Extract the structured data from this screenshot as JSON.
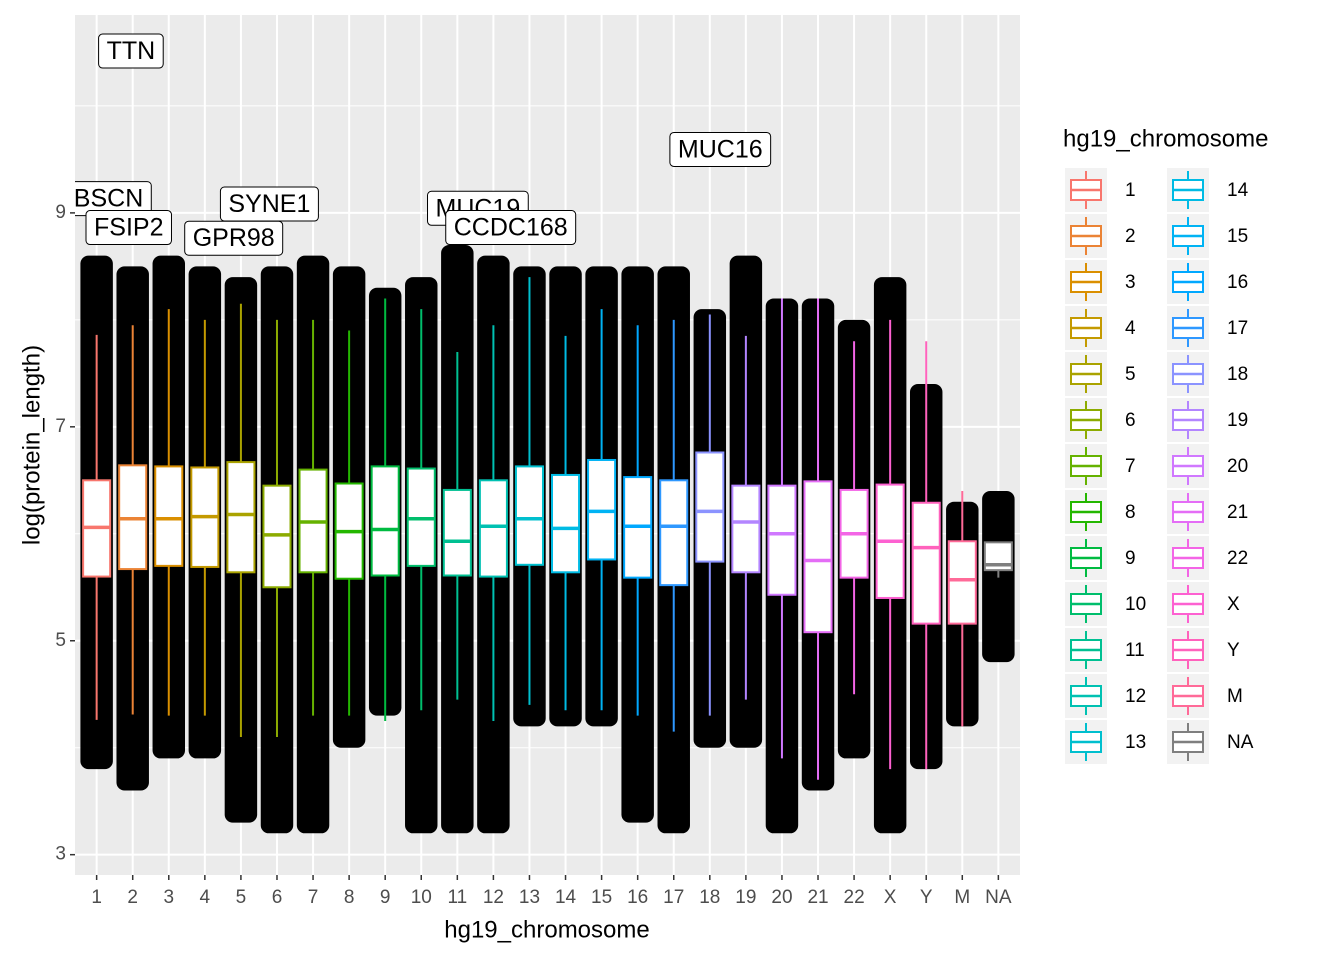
{
  "chart_data": {
    "type": "boxplot",
    "x_label": "hg19_chromosome",
    "y_label": "log(protein_length)",
    "legend_title": "hg19_chromosome",
    "categories": [
      "1",
      "2",
      "3",
      "4",
      "5",
      "6",
      "7",
      "8",
      "9",
      "10",
      "11",
      "12",
      "13",
      "14",
      "15",
      "16",
      "17",
      "18",
      "19",
      "20",
      "21",
      "22",
      "X",
      "Y",
      "M",
      "NA"
    ],
    "colors": [
      "#F8766D",
      "#EB8335",
      "#DA8F00",
      "#C49A00",
      "#AAA300",
      "#8CAB00",
      "#65B200",
      "#24B700",
      "#00BB41",
      "#00BE6C",
      "#00C092",
      "#00C1B2",
      "#00BFCE",
      "#00BBE4",
      "#00B3F4",
      "#00A8FF",
      "#2E98FF",
      "#8B93FF",
      "#B385FF",
      "#D078FF",
      "#E46DF6",
      "#F365E6",
      "#FD61D1",
      "#FF62BC",
      "#FF6A98",
      "#7F7F7F"
    ],
    "boxes": [
      {
        "low": 4.26,
        "q1": 5.6,
        "median": 6.06,
        "q3": 6.5,
        "high": 7.86
      },
      {
        "low": 4.31,
        "q1": 5.67,
        "median": 6.14,
        "q3": 6.64,
        "high": 7.95
      },
      {
        "low": 4.3,
        "q1": 5.7,
        "median": 6.14,
        "q3": 6.63,
        "high": 8.1
      },
      {
        "low": 4.3,
        "q1": 5.69,
        "median": 6.16,
        "q3": 6.62,
        "high": 8.0
      },
      {
        "low": 4.1,
        "q1": 5.64,
        "median": 6.18,
        "q3": 6.67,
        "high": 8.15
      },
      {
        "low": 4.1,
        "q1": 5.5,
        "median": 5.99,
        "q3": 6.45,
        "high": 8.0
      },
      {
        "low": 4.3,
        "q1": 5.64,
        "median": 6.11,
        "q3": 6.6,
        "high": 8.0
      },
      {
        "low": 4.3,
        "q1": 5.58,
        "median": 6.02,
        "q3": 6.47,
        "high": 7.9
      },
      {
        "low": 4.25,
        "q1": 5.61,
        "median": 6.04,
        "q3": 6.63,
        "high": 8.2
      },
      {
        "low": 4.35,
        "q1": 5.7,
        "median": 6.14,
        "q3": 6.61,
        "high": 8.1
      },
      {
        "low": 4.45,
        "q1": 5.61,
        "median": 5.93,
        "q3": 6.41,
        "high": 7.7
      },
      {
        "low": 4.25,
        "q1": 5.6,
        "median": 6.07,
        "q3": 6.5,
        "high": 7.95
      },
      {
        "low": 4.4,
        "q1": 5.71,
        "median": 6.14,
        "q3": 6.63,
        "high": 8.4
      },
      {
        "low": 4.35,
        "q1": 5.64,
        "median": 6.05,
        "q3": 6.55,
        "high": 7.85
      },
      {
        "low": 4.35,
        "q1": 5.76,
        "median": 6.21,
        "q3": 6.69,
        "high": 8.1
      },
      {
        "low": 4.3,
        "q1": 5.59,
        "median": 6.07,
        "q3": 6.53,
        "high": 7.95
      },
      {
        "low": 4.15,
        "q1": 5.52,
        "median": 6.07,
        "q3": 6.5,
        "high": 8.0
      },
      {
        "low": 4.3,
        "q1": 5.74,
        "median": 6.21,
        "q3": 6.76,
        "high": 8.05
      },
      {
        "low": 4.45,
        "q1": 5.64,
        "median": 6.11,
        "q3": 6.45,
        "high": 7.85
      },
      {
        "low": 3.9,
        "q1": 5.43,
        "median": 6.0,
        "q3": 6.45,
        "high": 8.2
      },
      {
        "low": 3.7,
        "q1": 5.08,
        "median": 5.75,
        "q3": 6.49,
        "high": 8.2
      },
      {
        "low": 4.5,
        "q1": 5.59,
        "median": 6.0,
        "q3": 6.41,
        "high": 7.8
      },
      {
        "low": 3.8,
        "q1": 5.4,
        "median": 5.93,
        "q3": 6.46,
        "high": 8.0
      },
      {
        "low": 3.8,
        "q1": 5.16,
        "median": 5.87,
        "q3": 6.29,
        "high": 7.8
      },
      {
        "low": 4.2,
        "q1": 5.16,
        "median": 5.57,
        "q3": 5.93,
        "high": 6.4
      },
      {
        "low": 5.59,
        "q1": 5.66,
        "median": 5.71,
        "q3": 5.92,
        "high": 5.92
      }
    ],
    "jitter_range": [
      [
        3.8,
        8.6
      ],
      [
        3.6,
        8.5
      ],
      [
        3.9,
        8.6
      ],
      [
        3.9,
        8.5
      ],
      [
        3.3,
        8.4
      ],
      [
        3.2,
        8.5
      ],
      [
        3.2,
        8.6
      ],
      [
        4.0,
        8.5
      ],
      [
        4.3,
        8.3
      ],
      [
        3.2,
        8.4
      ],
      [
        3.2,
        8.7
      ],
      [
        3.2,
        8.6
      ],
      [
        4.2,
        8.5
      ],
      [
        4.2,
        8.5
      ],
      [
        4.2,
        8.5
      ],
      [
        3.3,
        8.5
      ],
      [
        3.2,
        8.5
      ],
      [
        4.0,
        8.1
      ],
      [
        4.0,
        8.6
      ],
      [
        3.2,
        8.2
      ],
      [
        3.6,
        8.2
      ],
      [
        3.9,
        8.0
      ],
      [
        3.2,
        8.4
      ],
      [
        3.8,
        7.4
      ],
      [
        4.2,
        6.3
      ],
      [
        4.8,
        6.4
      ]
    ],
    "annotations": [
      {
        "text": "BSCN",
        "x": 1.33,
        "y": 9.12
      },
      {
        "text": "TTN",
        "x": 1.95,
        "y": 10.5
      },
      {
        "text": "SYNE1",
        "x": 5.79,
        "y": 9.07
      },
      {
        "text": "FSIP2",
        "x": 1.89,
        "y": 8.85
      },
      {
        "text": "GPR98",
        "x": 4.8,
        "y": 8.75
      },
      {
        "text": "MUC19",
        "x": 11.57,
        "y": 9.03
      },
      {
        "text": "CCDC168",
        "x": 12.48,
        "y": 8.85
      },
      {
        "text": "MUC16",
        "x": 18.29,
        "y": 9.58
      }
    ],
    "ylim": [
      2.81,
      10.85
    ],
    "yticks": [
      3,
      5,
      7,
      9
    ],
    "minor_yticks": [
      4,
      6,
      8,
      10
    ],
    "grid": true
  }
}
